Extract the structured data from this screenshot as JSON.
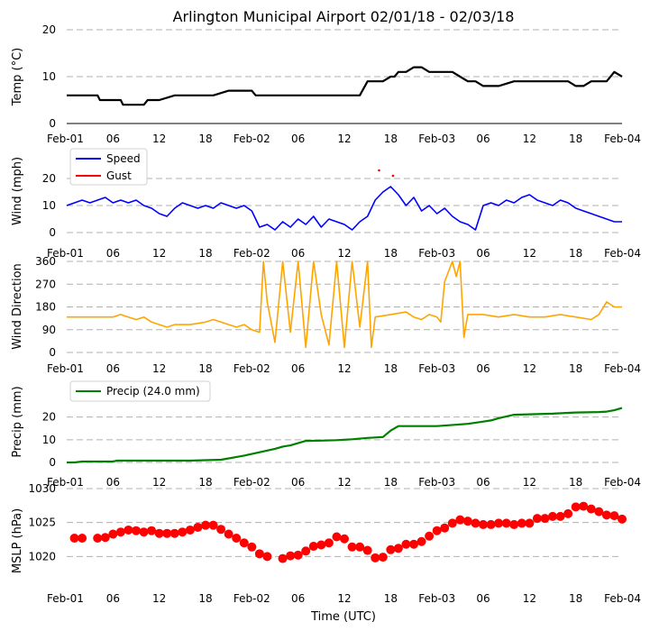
{
  "chart_data": {
    "title": "Arlington Municipal Airport 02/01/18 - 02/03/18",
    "xlabel": "Time (UTC)",
    "x_tick_labels": [
      "Feb-01",
      "06",
      "12",
      "18",
      "Feb-02",
      "06",
      "12",
      "18",
      "Feb-03",
      "06",
      "12",
      "18",
      "Feb-04"
    ],
    "x_unit": "hours since 2018-02-01 00:00 UTC",
    "xlim": [
      0,
      72
    ],
    "panels": [
      {
        "type": "line",
        "ylabel": "Temp (°C)",
        "ylim": [
          0,
          20
        ],
        "yticks": [
          0,
          10,
          20
        ],
        "series": [
          {
            "name": "Temp",
            "color": "#000000",
            "x": [
              0,
              4,
              4.3,
              5,
              5.5,
              7,
              7.3,
              10,
              10.5,
              12,
              14,
              16,
              18,
              19,
              21,
              24,
              24.5,
              29,
              30,
              34,
              34.2,
              35,
              36,
              37,
              38,
              39,
              39.5,
              40,
              41,
              42,
              42.5,
              43,
              44,
              45,
              45.5,
              46,
              47,
              48,
              49,
              50,
              51,
              52,
              53,
              54,
              56,
              58,
              60,
              61,
              62,
              64,
              65,
              66,
              67,
              68,
              69,
              70,
              70.5,
              71,
              72
            ],
            "y": [
              6,
              6,
              5,
              5,
              5,
              5,
              4,
              4,
              5,
              5,
              6,
              6,
              6,
              6,
              7,
              7,
              6,
              6,
              6,
              6,
              6,
              6,
              6,
              6,
              6,
              9,
              9,
              9,
              9,
              10,
              10,
              11,
              11,
              12,
              12,
              12,
              11,
              11,
              11,
              11,
              10,
              9,
              9,
              8,
              8,
              9,
              9,
              9,
              9,
              9,
              9,
              8,
              8,
              9,
              9,
              9,
              10,
              11,
              10
            ]
          }
        ]
      },
      {
        "type": "line",
        "ylabel": "Wind (mph)",
        "ylim": [
          0,
          25
        ],
        "yticks": [
          0,
          10,
          20
        ],
        "legend": {
          "position": "top-left",
          "entries": [
            "Speed",
            "Gust"
          ]
        },
        "series": [
          {
            "name": "Speed",
            "color": "#0000ff",
            "x": [
              0,
              1,
              2,
              3,
              4,
              5,
              6,
              7,
              8,
              9,
              10,
              11,
              12,
              13,
              14,
              15,
              16,
              17,
              18,
              19,
              20,
              21,
              22,
              23,
              24,
              25,
              26,
              27,
              28,
              29,
              30,
              31,
              32,
              33,
              34,
              35,
              36,
              37,
              38,
              39,
              40,
              41,
              42,
              43,
              44,
              45,
              46,
              47,
              48,
              49,
              50,
              51,
              52,
              53,
              54,
              55,
              56,
              57,
              58,
              59,
              60,
              61,
              62,
              63,
              64,
              65,
              66,
              67,
              68,
              69,
              70,
              71,
              72
            ],
            "y": [
              10,
              11,
              12,
              11,
              12,
              13,
              11,
              12,
              11,
              12,
              10,
              9,
              7,
              6,
              9,
              11,
              10,
              9,
              10,
              9,
              11,
              10,
              9,
              10,
              8,
              2,
              3,
              1,
              4,
              2,
              5,
              3,
              6,
              2,
              5,
              4,
              3,
              1,
              4,
              6,
              12,
              15,
              17,
              14,
              10,
              13,
              8,
              10,
              7,
              9,
              6,
              4,
              3,
              1,
              10,
              11,
              10,
              12,
              11,
              13,
              14,
              12,
              11,
              10,
              12,
              11,
              9,
              8,
              7,
              6,
              5,
              4,
              4
            ]
          },
          {
            "name": "Gust",
            "color": "#ff0000",
            "x": [
              40.5,
              42.3
            ],
            "y": [
              23,
              21
            ]
          }
        ]
      },
      {
        "type": "line",
        "ylabel": "Wind Direction",
        "ylim": [
          0,
          360
        ],
        "yticks": [
          0,
          90,
          180,
          270,
          360
        ],
        "series": [
          {
            "name": "Direction",
            "color": "#ffa500",
            "x": [
              0,
              3,
              6,
              7,
              8,
              9,
              10,
              11,
              12,
              13,
              14,
              16,
              18,
              19,
              20,
              21,
              22,
              23,
              24,
              25,
              25.5,
              26,
              27,
              28,
              29,
              30,
              31,
              32,
              33,
              34,
              35,
              36,
              37,
              38,
              39,
              39.5,
              40,
              42,
              44,
              45,
              46,
              47,
              48,
              48.5,
              49,
              50,
              50.5,
              51,
              51.5,
              52,
              54,
              56,
              58,
              60,
              62,
              64,
              66,
              68,
              69,
              70,
              71,
              72
            ],
            "y": [
              140,
              140,
              140,
              150,
              140,
              130,
              140,
              120,
              110,
              100,
              110,
              110,
              120,
              130,
              120,
              110,
              100,
              110,
              90,
              80,
              360,
              200,
              40,
              360,
              80,
              360,
              20,
              360,
              150,
              30,
              360,
              20,
              360,
              100,
              360,
              20,
              140,
              150,
              160,
              140,
              130,
              150,
              140,
              120,
              280,
              360,
              300,
              360,
              60,
              150,
              150,
              140,
              150,
              140,
              140,
              150,
              140,
              130,
              150,
              200,
              180,
              180
            ]
          }
        ]
      },
      {
        "type": "line",
        "ylabel": "Precip (mm)",
        "ylim": [
          0,
          27
        ],
        "yticks": [
          0,
          10,
          20
        ],
        "legend": {
          "position": "top-left",
          "entries": [
            "Precip (24.0 mm)"
          ]
        },
        "series": [
          {
            "name": "Precip (24.0 mm)",
            "color": "#008000",
            "x": [
              0,
              1,
              2,
              6,
              6.5,
              12,
              16,
              18,
              20,
              21,
              23,
              25,
              27,
              28,
              29,
              30,
              31,
              33,
              35,
              37,
              39,
              40,
              41,
              42,
              42.5,
              43,
              45,
              48,
              52,
              54,
              55,
              56,
              58,
              60,
              63,
              66,
              69,
              70,
              71,
              72
            ],
            "y": [
              0,
              0,
              0.4,
              0.4,
              0.8,
              0.8,
              0.8,
              1,
              1.2,
              1.8,
              3,
              4.5,
              6,
              7,
              7.5,
              8.5,
              9.5,
              9.6,
              9.8,
              10.2,
              10.8,
              11,
              11.2,
              14,
              15,
              16,
              16,
              16,
              17,
              18,
              18.5,
              19.5,
              21,
              21.2,
              21.5,
              22,
              22.2,
              22.4,
              23,
              24
            ]
          }
        ]
      },
      {
        "type": "scatter",
        "ylabel": "MSLP (hPa)",
        "ylim": [
          1015,
          1030
        ],
        "yticks": [
          1020,
          1025,
          1030
        ],
        "series": [
          {
            "name": "MSLP",
            "color": "#ff0000",
            "x": [
              1,
              2,
              4,
              5,
              6,
              7,
              8,
              9,
              10,
              11,
              12,
              13,
              14,
              15,
              16,
              17,
              18,
              19,
              20,
              21,
              22,
              23,
              24,
              25,
              26,
              28,
              29,
              30,
              31,
              32,
              33,
              34,
              35,
              36,
              37,
              38,
              39,
              40,
              41,
              42,
              43,
              44,
              45,
              46,
              47,
              48,
              49,
              50,
              51,
              52,
              53,
              54,
              55,
              56,
              57,
              58,
              59,
              60,
              61,
              62,
              63,
              64,
              65,
              66,
              67,
              68,
              69,
              70,
              71,
              72
            ],
            "y": [
              1022.7,
              1022.7,
              1022.7,
              1022.8,
              1023.3,
              1023.6,
              1023.9,
              1023.8,
              1023.6,
              1023.8,
              1023.4,
              1023.4,
              1023.4,
              1023.6,
              1023.9,
              1024.3,
              1024.6,
              1024.6,
              1024.0,
              1023.3,
              1022.7,
              1022.0,
              1021.4,
              1020.4,
              1020.0,
              1019.7,
              1020.1,
              1020.2,
              1020.8,
              1021.5,
              1021.7,
              1022.0,
              1022.9,
              1022.6,
              1021.4,
              1021.4,
              1020.9,
              1019.8,
              1019.9,
              1021.0,
              1021.2,
              1021.8,
              1021.8,
              1022.2,
              1023.0,
              1023.8,
              1024.2,
              1024.9,
              1025.4,
              1025.2,
              1024.9,
              1024.7,
              1024.7,
              1024.9,
              1024.9,
              1024.7,
              1024.9,
              1024.9,
              1025.6,
              1025.6,
              1025.9,
              1025.9,
              1026.3,
              1027.3,
              1027.4,
              1027.0,
              1026.6,
              1026.1,
              1026.0,
              1025.5
            ]
          }
        ]
      }
    ]
  }
}
